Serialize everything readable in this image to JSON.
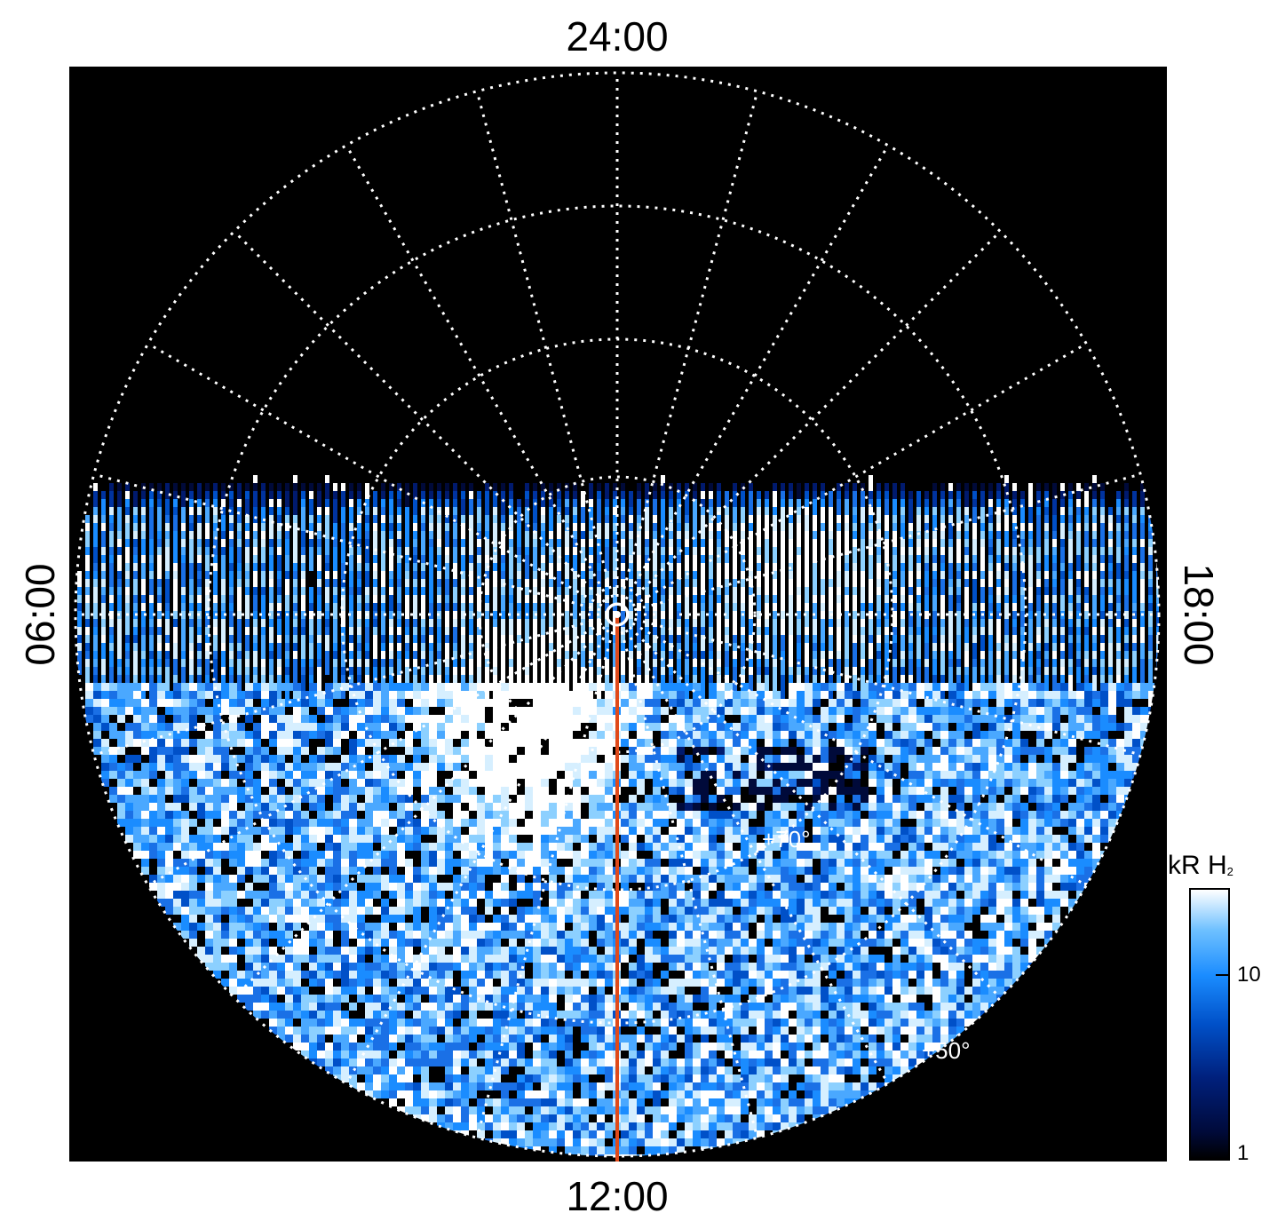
{
  "labels": {
    "top": "24:00",
    "bottom": "12:00",
    "left": "06:00",
    "right": "18:00"
  },
  "latitude_labels": {
    "inner": "+70°",
    "outer": "+50°"
  },
  "colorbar": {
    "title": "kR H",
    "title_subscript": "2",
    "ticks": [
      "10",
      "1"
    ],
    "colors": [
      "#000000",
      "#001060",
      "#0050c8",
      "#1a8cff",
      "#6ec0ff",
      "#ffffff"
    ]
  },
  "colors": {
    "background": "#000000",
    "grid": "#ffffff",
    "meridian_line": "#e04a1a"
  }
}
